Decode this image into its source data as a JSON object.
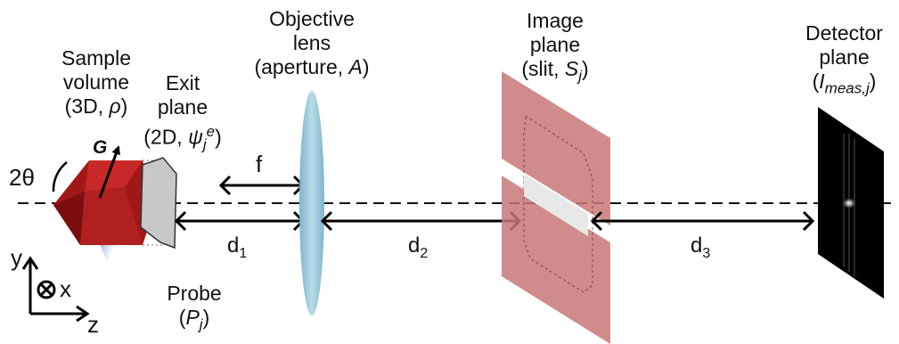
{
  "labels": {
    "sample": {
      "line1": "Sample",
      "line2": "volume",
      "line3_pre": "(3D, ",
      "line3_sym": "ρ",
      "line3_post": ")"
    },
    "exit": {
      "line1": "Exit",
      "line2": "plane",
      "line3_pre": "(2D, ",
      "line3_sym": "ψ",
      "line3_sub": "j",
      "line3_sup": "e",
      "line3_post": ")"
    },
    "objective": {
      "line1": "Objective",
      "line2": "lens",
      "line3_pre": "(aperture, ",
      "line3_sym": "A",
      "line3_post": ")"
    },
    "image": {
      "line1": "Image",
      "line2": "plane",
      "line3_pre": "(slit, ",
      "line3_sym": "S",
      "line3_sub": "j",
      "line3_post": ")"
    },
    "detector": {
      "line1": "Detector",
      "line2": "plane",
      "line3_pre": "(",
      "line3_sym": "I",
      "line3_sub": "meas,j",
      "line3_post": ")"
    },
    "probe": {
      "line1": "Probe",
      "line2_pre": "(",
      "line2_sym": "P",
      "line2_sub": "j",
      "line2_post": ")"
    },
    "angle": "2θ",
    "vector": "G",
    "focal": "f",
    "d1": {
      "base": "d",
      "sub": "1"
    },
    "d2": {
      "base": "d",
      "sub": "2"
    },
    "d3": {
      "base": "d",
      "sub": "3"
    },
    "axis_y": "y",
    "axis_x": "x",
    "axis_z": "z"
  },
  "colors": {
    "probe": "#4a78c8",
    "crystal": "#a01818",
    "crystal_light": "#d03030",
    "lens": "#9ec9da",
    "slit": "#c87878",
    "exit_plane": "#c8c8c8",
    "detector": "#000000"
  }
}
